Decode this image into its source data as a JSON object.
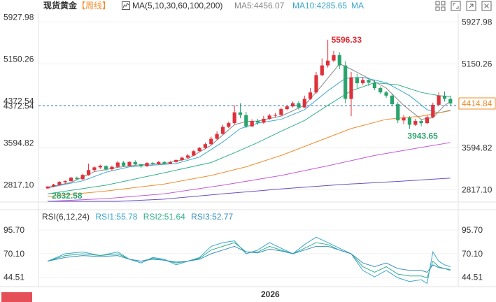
{
  "header": {
    "symbol": "现货黄金",
    "period": "【周线】",
    "ma_label": "MA(5,10,30,60,100,200)",
    "ma5_label": "MA5:4456.07",
    "ma10_label": "MA10:4285.65",
    "ma_tail_label": "MA"
  },
  "toolbar": [
    "grid-icon",
    "fullscreen-icon",
    "popout-icon",
    "close-icon"
  ],
  "colors": {
    "up": "#e0303a",
    "down": "#2aa46b",
    "ma5": "#8a8a8a",
    "ma10": "#3aa7cf",
    "ma30": "#33b08a",
    "ma60": "#f08c2a",
    "ma100": "#c45ad8",
    "ma200": "#6a4fc4",
    "rsi1": "#3aa7cf",
    "rsi2": "#33b08a",
    "rsi3": "#3a8fc0",
    "crosshair": "#1a6fb0",
    "price_tag": "#f08c2a"
  },
  "chart_data": [
    {
      "type": "candlestick",
      "title": "现货黄金【周线】",
      "ylim": [
        2600,
        6100
      ],
      "y_ticks": [
        "5927.98",
        "5150.26",
        "4372.54",
        "3594.82",
        "2817.10"
      ],
      "y_ticks_right": [
        "5927.98",
        "5150.26",
        "4372.54",
        "3594.82",
        "2817.10"
      ],
      "x_tick_label": "2026",
      "annotations": {
        "high": "5596.33",
        "low": "3943.65",
        "first_low": "2832.58",
        "last_price": "4414.84",
        "crosshair_right_partial": "4372.54"
      },
      "candles": [
        [
          2840,
          2875,
          2832,
          2880
        ],
        [
          2875,
          2910,
          2860,
          2925
        ],
        [
          2905,
          2960,
          2895,
          2975
        ],
        [
          2955,
          2975,
          2930,
          2990
        ],
        [
          2975,
          3040,
          2965,
          3055
        ],
        [
          3035,
          3010,
          2995,
          3060
        ],
        [
          3010,
          3090,
          3000,
          3110
        ],
        [
          3085,
          3180,
          3075,
          3300
        ],
        [
          3180,
          3230,
          3150,
          3250
        ],
        [
          3230,
          3260,
          3200,
          3280
        ],
        [
          3255,
          3195,
          3160,
          3270
        ],
        [
          3195,
          3240,
          3170,
          3260
        ],
        [
          3240,
          3320,
          3225,
          3345
        ],
        [
          3320,
          3260,
          3240,
          3350
        ],
        [
          3260,
          3330,
          3245,
          3345
        ],
        [
          3330,
          3285,
          3270,
          3360
        ],
        [
          3285,
          3250,
          3215,
          3300
        ],
        [
          3250,
          3310,
          3240,
          3325
        ],
        [
          3310,
          3290,
          3270,
          3330
        ],
        [
          3290,
          3330,
          3280,
          3345
        ],
        [
          3330,
          3300,
          3285,
          3345
        ],
        [
          3300,
          3330,
          3290,
          3345
        ],
        [
          3330,
          3365,
          3315,
          3380
        ],
        [
          3365,
          3410,
          3350,
          3430
        ],
        [
          3410,
          3450,
          3395,
          3480
        ],
        [
          3450,
          3530,
          3440,
          3550
        ],
        [
          3530,
          3590,
          3520,
          3610
        ],
        [
          3590,
          3660,
          3575,
          3690
        ],
        [
          3660,
          3760,
          3650,
          3800
        ],
        [
          3760,
          3850,
          3740,
          3900
        ],
        [
          3850,
          3980,
          3840,
          4020
        ],
        [
          3980,
          4050,
          3960,
          4080
        ],
        [
          4050,
          4250,
          4030,
          4380
        ],
        [
          4250,
          4200,
          4140,
          4420
        ],
        [
          4200,
          3990,
          3960,
          4260
        ],
        [
          3990,
          4090,
          3980,
          4120
        ],
        [
          4090,
          4060,
          4020,
          4130
        ],
        [
          4060,
          4130,
          4040,
          4180
        ],
        [
          4130,
          4190,
          4110,
          4220
        ],
        [
          4190,
          4200,
          4160,
          4240
        ],
        [
          4200,
          4310,
          4190,
          4340
        ],
        [
          4310,
          4360,
          4290,
          4380
        ],
        [
          4360,
          4420,
          4340,
          4450
        ],
        [
          4420,
          4340,
          4300,
          4460
        ],
        [
          4340,
          4500,
          4330,
          4560
        ],
        [
          4500,
          4620,
          4480,
          4700
        ],
        [
          4620,
          4940,
          4600,
          5000
        ],
        [
          4940,
          5120,
          4920,
          5250
        ],
        [
          5120,
          5210,
          5080,
          5596
        ],
        [
          5210,
          5310,
          5180,
          5390
        ],
        [
          5310,
          5120,
          5050,
          5360
        ],
        [
          5120,
          4500,
          4420,
          5200
        ],
        [
          4500,
          4900,
          4180,
          5000
        ],
        [
          4900,
          4790,
          4700,
          4960
        ],
        [
          4790,
          4850,
          4760,
          4900
        ],
        [
          4850,
          4800,
          4740,
          4890
        ],
        [
          4800,
          4700,
          4660,
          4850
        ],
        [
          4700,
          4620,
          4590,
          4730
        ],
        [
          4620,
          4560,
          4520,
          4650
        ],
        [
          4560,
          4400,
          4360,
          4600
        ],
        [
          4400,
          4100,
          4050,
          4440
        ],
        [
          4100,
          4150,
          4030,
          4200
        ],
        [
          4150,
          4020,
          3944,
          4180
        ],
        [
          4020,
          4090,
          4000,
          4130
        ],
        [
          4090,
          4050,
          3990,
          4120
        ],
        [
          4050,
          4160,
          4030,
          4200
        ],
        [
          4160,
          4390,
          4140,
          4430
        ],
        [
          4390,
          4560,
          4370,
          4620
        ],
        [
          4560,
          4500,
          4450,
          4640
        ],
        [
          4500,
          4415,
          4380,
          4560
        ]
      ],
      "moving_averages": {
        "MA5": [
          [
            0,
            2860
          ],
          [
            4,
            2950
          ],
          [
            8,
            3150
          ],
          [
            12,
            3230
          ],
          [
            16,
            3280
          ],
          [
            20,
            3300
          ],
          [
            24,
            3390
          ],
          [
            28,
            3640
          ],
          [
            32,
            4020
          ],
          [
            34,
            4080
          ],
          [
            36,
            4090
          ],
          [
            40,
            4180
          ],
          [
            44,
            4380
          ],
          [
            47,
            4750
          ],
          [
            50,
            5150
          ],
          [
            52,
            5050
          ],
          [
            55,
            4880
          ],
          [
            58,
            4700
          ],
          [
            61,
            4380
          ],
          [
            64,
            4120
          ],
          [
            66,
            4150
          ],
          [
            68,
            4380
          ],
          [
            69,
            4450
          ]
        ],
        "MA10": [
          [
            0,
            2850
          ],
          [
            6,
            2980
          ],
          [
            10,
            3140
          ],
          [
            14,
            3240
          ],
          [
            18,
            3270
          ],
          [
            22,
            3300
          ],
          [
            26,
            3420
          ],
          [
            30,
            3700
          ],
          [
            33,
            3950
          ],
          [
            36,
            4050
          ],
          [
            40,
            4120
          ],
          [
            44,
            4300
          ],
          [
            48,
            4650
          ],
          [
            51,
            4880
          ],
          [
            54,
            4900
          ],
          [
            58,
            4800
          ],
          [
            62,
            4560
          ],
          [
            65,
            4300
          ],
          [
            67,
            4240
          ],
          [
            69,
            4290
          ]
        ],
        "MA30": [
          [
            0,
            2740
          ],
          [
            10,
            2900
          ],
          [
            20,
            3130
          ],
          [
            28,
            3320
          ],
          [
            32,
            3500
          ],
          [
            36,
            3690
          ],
          [
            40,
            3900
          ],
          [
            44,
            4100
          ],
          [
            48,
            4380
          ],
          [
            52,
            4650
          ],
          [
            56,
            4800
          ],
          [
            60,
            4760
          ],
          [
            64,
            4620
          ],
          [
            67,
            4560
          ],
          [
            69,
            4540
          ]
        ],
        "MA60": [
          [
            0,
            2690
          ],
          [
            10,
            2790
          ],
          [
            20,
            2920
          ],
          [
            28,
            3080
          ],
          [
            34,
            3240
          ],
          [
            40,
            3450
          ],
          [
            46,
            3700
          ],
          [
            52,
            3950
          ],
          [
            58,
            4120
          ],
          [
            64,
            4180
          ],
          [
            69,
            4280
          ]
        ],
        "MA100": [
          [
            0,
            2600
          ],
          [
            10,
            2650
          ],
          [
            20,
            2740
          ],
          [
            30,
            2900
          ],
          [
            40,
            3080
          ],
          [
            48,
            3260
          ],
          [
            56,
            3450
          ],
          [
            64,
            3600
          ],
          [
            69,
            3690
          ]
        ],
        "MA200": [
          [
            0,
            2600
          ],
          [
            6,
            2600
          ],
          [
            12,
            2600
          ],
          [
            20,
            2640
          ],
          [
            30,
            2740
          ],
          [
            40,
            2830
          ],
          [
            50,
            2910
          ],
          [
            60,
            2970
          ],
          [
            69,
            3030
          ]
        ]
      }
    },
    {
      "type": "line",
      "title": "RSI(6,12,24)",
      "ylim": [
        36,
        104
      ],
      "y_ticks": [
        "95.70",
        "70.10",
        "44.51"
      ],
      "y_ticks_right": [
        "95.70",
        "70.10",
        "44.51"
      ],
      "series": [
        {
          "name": "RSI1:55.78",
          "values": [
            [
              0,
              62
            ],
            [
              3,
              70
            ],
            [
              6,
              72
            ],
            [
              9,
              68
            ],
            [
              12,
              72
            ],
            [
              14,
              64
            ],
            [
              16,
              60
            ],
            [
              18,
              66
            ],
            [
              20,
              64
            ],
            [
              22,
              58
            ],
            [
              24,
              62
            ],
            [
              26,
              66
            ],
            [
              28,
              78
            ],
            [
              30,
              82
            ],
            [
              32,
              84
            ],
            [
              34,
              70
            ],
            [
              36,
              74
            ],
            [
              38,
              82
            ],
            [
              40,
              76
            ],
            [
              42,
              70
            ],
            [
              44,
              80
            ],
            [
              46,
              88
            ],
            [
              48,
              82
            ],
            [
              50,
              76
            ],
            [
              52,
              70
            ],
            [
              54,
              52
            ],
            [
              56,
              45
            ],
            [
              58,
              52
            ],
            [
              60,
              44
            ],
            [
              62,
              40
            ],
            [
              64,
              42
            ],
            [
              65,
              38
            ],
            [
              66,
              72
            ],
            [
              67,
              62
            ],
            [
              68,
              58
            ],
            [
              69,
              56
            ]
          ]
        },
        {
          "name": "RSI2:51.64",
          "values": [
            [
              0,
              62
            ],
            [
              3,
              68
            ],
            [
              6,
              70
            ],
            [
              9,
              68
            ],
            [
              12,
              70
            ],
            [
              14,
              64
            ],
            [
              16,
              62
            ],
            [
              18,
              65
            ],
            [
              20,
              63
            ],
            [
              22,
              60
            ],
            [
              24,
              62
            ],
            [
              26,
              65
            ],
            [
              28,
              74
            ],
            [
              30,
              78
            ],
            [
              32,
              82
            ],
            [
              34,
              72
            ],
            [
              36,
              72
            ],
            [
              38,
              78
            ],
            [
              40,
              74
            ],
            [
              42,
              70
            ],
            [
              44,
              76
            ],
            [
              46,
              82
            ],
            [
              48,
              80
            ],
            [
              50,
              74
            ],
            [
              52,
              70
            ],
            [
              54,
              56
            ],
            [
              56,
              50
            ],
            [
              58,
              56
            ],
            [
              60,
              48
            ],
            [
              62,
              46
            ],
            [
              64,
              46
            ],
            [
              65,
              44
            ],
            [
              66,
              62
            ],
            [
              67,
              56
            ],
            [
              68,
              54
            ],
            [
              69,
              52
            ]
          ]
        },
        {
          "name": "RSI3:52.77",
          "values": [
            [
              0,
              62
            ],
            [
              3,
              66
            ],
            [
              6,
              68
            ],
            [
              9,
              67
            ],
            [
              12,
              68
            ],
            [
              14,
              64
            ],
            [
              16,
              62
            ],
            [
              18,
              64
            ],
            [
              20,
              63
            ],
            [
              22,
              61
            ],
            [
              24,
              62
            ],
            [
              26,
              64
            ],
            [
              28,
              70
            ],
            [
              30,
              74
            ],
            [
              32,
              78
            ],
            [
              34,
              72
            ],
            [
              36,
              71
            ],
            [
              38,
              75
            ],
            [
              40,
              73
            ],
            [
              42,
              70
            ],
            [
              44,
              74
            ],
            [
              46,
              78
            ],
            [
              48,
              78
            ],
            [
              50,
              74
            ],
            [
              52,
              70
            ],
            [
              54,
              60
            ],
            [
              56,
              56
            ],
            [
              58,
              60
            ],
            [
              60,
              54
            ],
            [
              62,
              52
            ],
            [
              64,
              52
            ],
            [
              65,
              50
            ],
            [
              66,
              58
            ],
            [
              67,
              55
            ],
            [
              68,
              54
            ],
            [
              69,
              53
            ]
          ]
        }
      ]
    }
  ]
}
